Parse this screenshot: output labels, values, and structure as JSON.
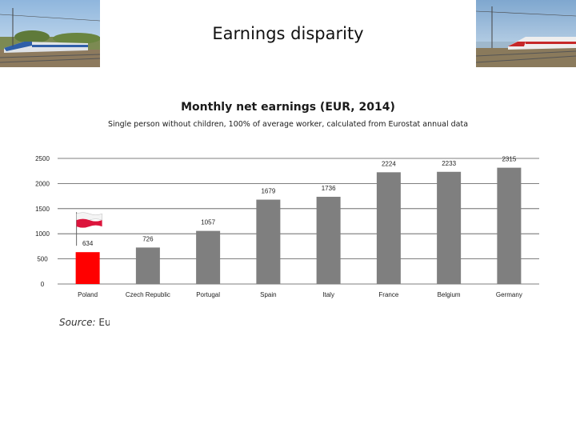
{
  "slide": {
    "title": "Earnings disparity",
    "source_label": "Source:",
    "source_text": "Eu"
  },
  "photos": {
    "left": "train-photo-left",
    "right": "train-photo-right"
  },
  "chart_data": {
    "type": "bar",
    "title": "Monthly net earnings (EUR, 2014)",
    "subtitle": "Single person without children, 100% of average worker, calculated from Eurostat annual data",
    "categories": [
      "Poland",
      "Czech Republic",
      "Portugal",
      "Spain",
      "Italy",
      "France",
      "Belgium",
      "Germany"
    ],
    "values": [
      634,
      726,
      1057,
      1679,
      1736,
      2224,
      2233,
      2315
    ],
    "data_labels": [
      "634",
      "726",
      "1057",
      "1679",
      "1736",
      "2224",
      "2233",
      "2315"
    ],
    "yticks": [
      0,
      500,
      1000,
      1500,
      2000,
      2500
    ],
    "ylim": [
      0,
      2500
    ],
    "grid": true,
    "legend": "none",
    "colors": {
      "highlight": "#ff0000",
      "default": "#7f7f7f",
      "grid": "#555555"
    },
    "highlight_index": 0,
    "flag_icon": "poland-flag-icon"
  }
}
